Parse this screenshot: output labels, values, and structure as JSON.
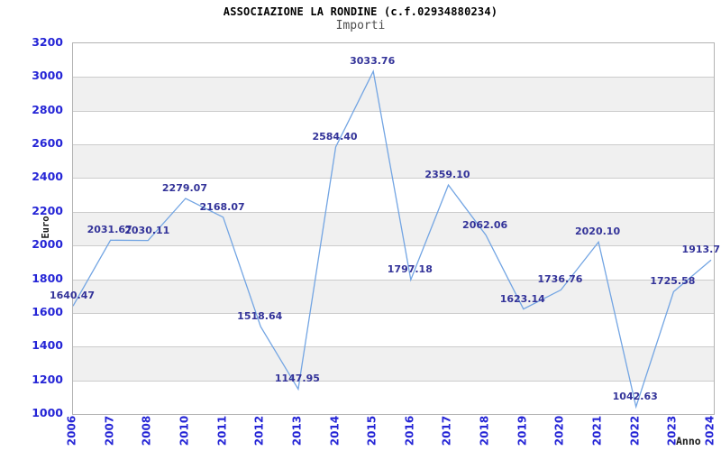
{
  "header": {
    "title": "ASSOCIAZIONE LA RONDINE (c.f.02934880234)",
    "subtitle": "Importi"
  },
  "chart_data": {
    "type": "line",
    "title": "ASSOCIAZIONE LA RONDINE (c.f.02934880234)",
    "subtitle": "Importi",
    "xlabel": "Anno",
    "ylabel": "Euro",
    "legend_position": "none",
    "grid": true,
    "background_bands": "alternating white / light gray every 200",
    "categories": [
      "2006",
      "2007",
      "2008",
      "2010",
      "2011",
      "2012",
      "2013",
      "2014",
      "2015",
      "2016",
      "2017",
      "2018",
      "2019",
      "2020",
      "2021",
      "2022",
      "2023",
      "2024"
    ],
    "values": [
      1640.47,
      2031.67,
      2030.11,
      2279.07,
      2168.07,
      1518.64,
      1147.95,
      2584.4,
      3033.76,
      1797.18,
      2359.1,
      2062.06,
      1623.14,
      1736.76,
      2020.1,
      1042.63,
      1725.58,
      1913.7
    ],
    "point_labels": [
      "1640.47",
      "2031.67",
      "2030.11",
      "2279.07",
      "2168.07",
      "1518.64",
      "1147.95",
      "2584.40",
      "3033.76",
      "1797.18",
      "2359.10",
      "2062.06",
      "1623.14",
      "1736.76",
      "2020.10",
      "1042.63",
      "1725.58",
      "1913.7"
    ],
    "ylim": [
      1000,
      3200
    ],
    "ytick_step": 200,
    "ytick_labels": [
      "3200",
      "3000",
      "2800",
      "2600",
      "2400",
      "2200",
      "2000",
      "1800",
      "1600",
      "1400",
      "1200",
      "1000"
    ]
  },
  "colors": {
    "line": "#73a5e3",
    "axis_tick_text": "#2525d6",
    "point_label_text": "#333399",
    "gridline": "#cccccc",
    "band_gray": "#f0f0f0",
    "plot_border": "#b3b3b3",
    "title_text": "#000000",
    "subtitle_text": "#4d4d4d"
  }
}
